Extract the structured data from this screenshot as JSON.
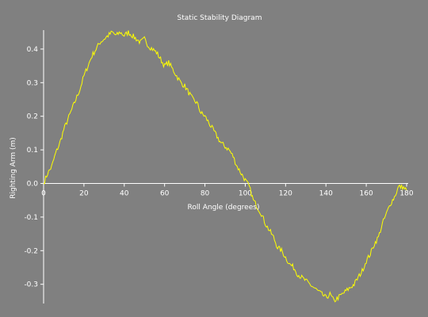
{
  "chart_data": {
    "type": "line",
    "title": "Static Stability Diagram",
    "xlabel": "Roll Angle (degrees)",
    "ylabel": "Righting Arm (m)",
    "xlim": [
      0,
      180
    ],
    "ylim": [
      -0.35,
      0.45
    ],
    "grid": false,
    "colors": {
      "background": "#808080",
      "axis": "#ffffff",
      "series": "#ffff00"
    },
    "x_ticks": [
      0,
      20,
      40,
      60,
      80,
      100,
      120,
      140,
      160,
      180
    ],
    "x_tick_labels": [
      "0",
      "20",
      "40",
      "60",
      "80",
      "100",
      "120",
      "140",
      "160",
      "180"
    ],
    "y_ticks": [
      -0.3,
      -0.2,
      -0.1,
      0.0,
      0.1,
      0.2,
      0.3,
      0.4
    ],
    "y_tick_labels": [
      "-0.3",
      "-0.2",
      "-0.1",
      "0.0",
      "0.1",
      "0.2",
      "0.3",
      "0.4"
    ],
    "series": [
      {
        "x": [
          0,
          2,
          4,
          6,
          8,
          10,
          12,
          14,
          16,
          18,
          20,
          22,
          24,
          26,
          28,
          30,
          32,
          34,
          36,
          38,
          40,
          42,
          44,
          46,
          48,
          50,
          52,
          54,
          56,
          58,
          60,
          62,
          64,
          66,
          68,
          70,
          72,
          74,
          76,
          78,
          80,
          82,
          84,
          86,
          88,
          90,
          92,
          94,
          96,
          98,
          100,
          102,
          104,
          106,
          108,
          110,
          112,
          114,
          116,
          118,
          120,
          122,
          124,
          126,
          128,
          130,
          132,
          134,
          136,
          138,
          140,
          142,
          144,
          146,
          148,
          150,
          152,
          154,
          156,
          158,
          160,
          162,
          164,
          166,
          168,
          170,
          172,
          174,
          176,
          178,
          180
        ],
        "values": [
          0.0,
          0.03,
          0.05,
          0.09,
          0.12,
          0.16,
          0.19,
          0.22,
          0.25,
          0.28,
          0.32,
          0.35,
          0.38,
          0.4,
          0.42,
          0.43,
          0.44,
          0.45,
          0.44,
          0.45,
          0.44,
          0.45,
          0.44,
          0.43,
          0.42,
          0.43,
          0.41,
          0.4,
          0.39,
          0.37,
          0.35,
          0.36,
          0.34,
          0.32,
          0.3,
          0.29,
          0.27,
          0.25,
          0.24,
          0.21,
          0.2,
          0.18,
          0.16,
          0.14,
          0.12,
          0.11,
          0.1,
          0.08,
          0.05,
          0.03,
          0.01,
          -0.01,
          -0.05,
          -0.07,
          -0.09,
          -0.12,
          -0.14,
          -0.16,
          -0.19,
          -0.2,
          -0.22,
          -0.24,
          -0.25,
          -0.27,
          -0.28,
          -0.29,
          -0.3,
          -0.31,
          -0.32,
          -0.33,
          -0.34,
          -0.33,
          -0.35,
          -0.34,
          -0.33,
          -0.32,
          -0.31,
          -0.3,
          -0.28,
          -0.26,
          -0.23,
          -0.21,
          -0.18,
          -0.16,
          -0.12,
          -0.09,
          -0.06,
          -0.04,
          -0.01,
          -0.01,
          -0.02
        ]
      }
    ]
  }
}
